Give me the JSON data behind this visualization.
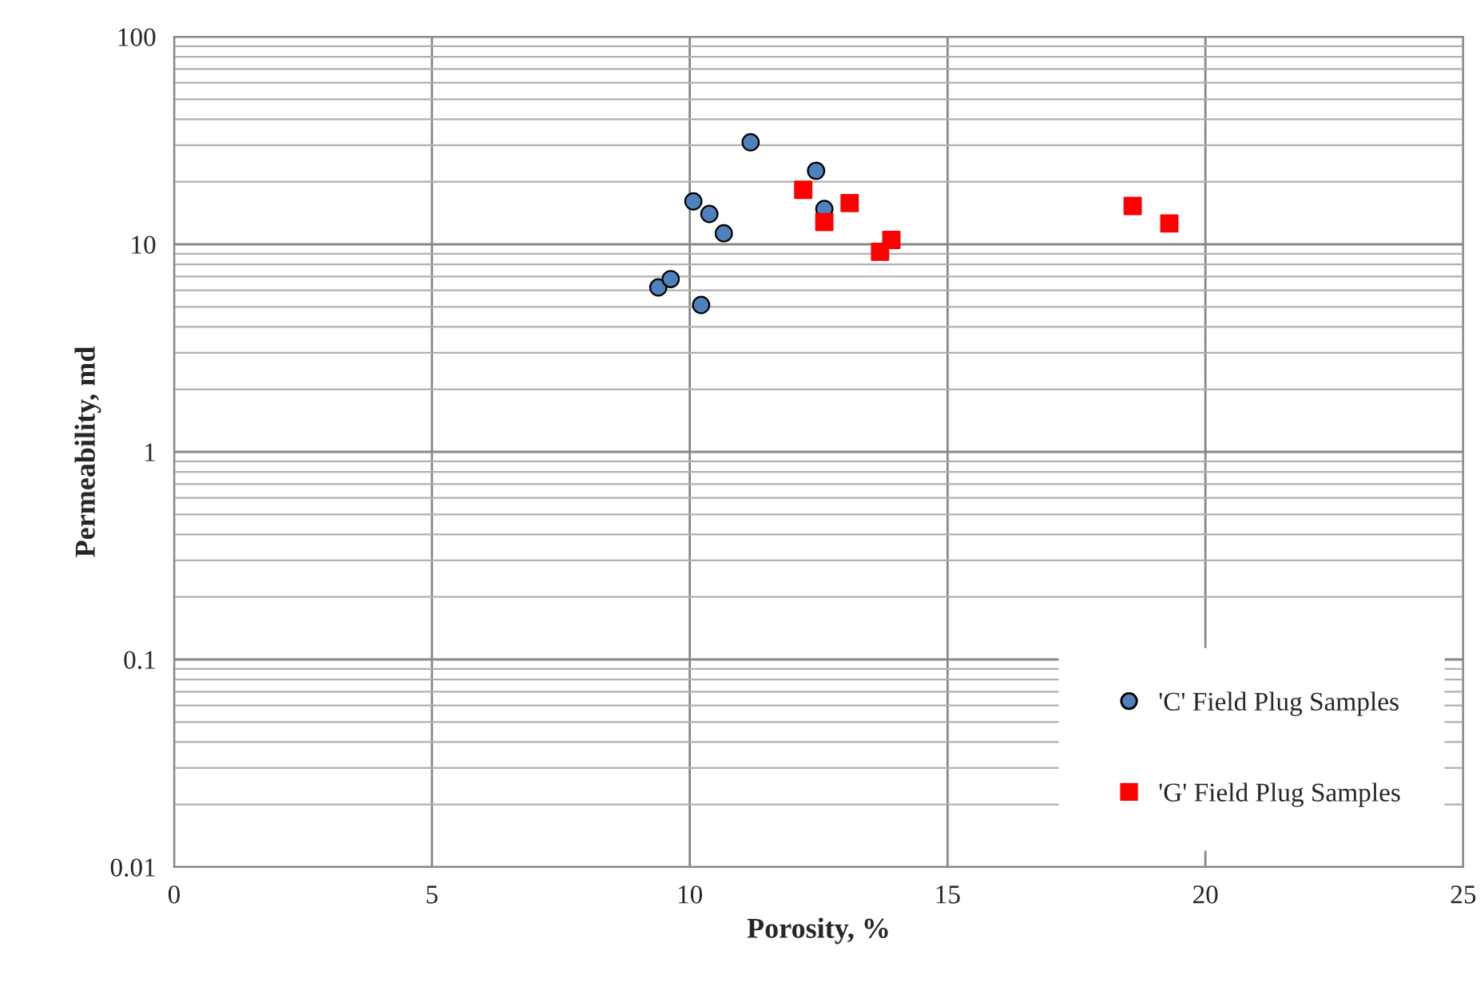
{
  "chart_data": {
    "type": "scatter",
    "xlabel": "Porosity, %",
    "ylabel": "Permeability, md",
    "log": "y",
    "grid": true,
    "legend": "bottom right",
    "xlim": [
      0,
      25
    ],
    "xticks": [
      0,
      5,
      10,
      15,
      20,
      25
    ],
    "ylim": [
      0.01,
      100
    ],
    "yticks": [
      0.01,
      0.1,
      1,
      10,
      100
    ],
    "series": [
      {
        "name": "'C' Field Plug Samples",
        "color": "#4f81bd",
        "marker": "circle",
        "x": [
          11.18,
          12.45,
          10.07,
          10.38,
          10.66,
          12.61,
          9.39,
          9.63,
          10.22
        ],
        "values": [
          31,
          22.6,
          16.1,
          14,
          11.3,
          14.8,
          6.2,
          6.8,
          5.1
        ]
      },
      {
        "name": "'G' Field Plug Samples",
        "color": "#ff0000",
        "marker": "square",
        "x": [
          12.2,
          13.1,
          12.61,
          13.69,
          13.91,
          18.59,
          19.3
        ],
        "values": [
          18.3,
          15.8,
          12.8,
          9.2,
          10.5,
          15.3,
          12.6
        ]
      }
    ]
  }
}
